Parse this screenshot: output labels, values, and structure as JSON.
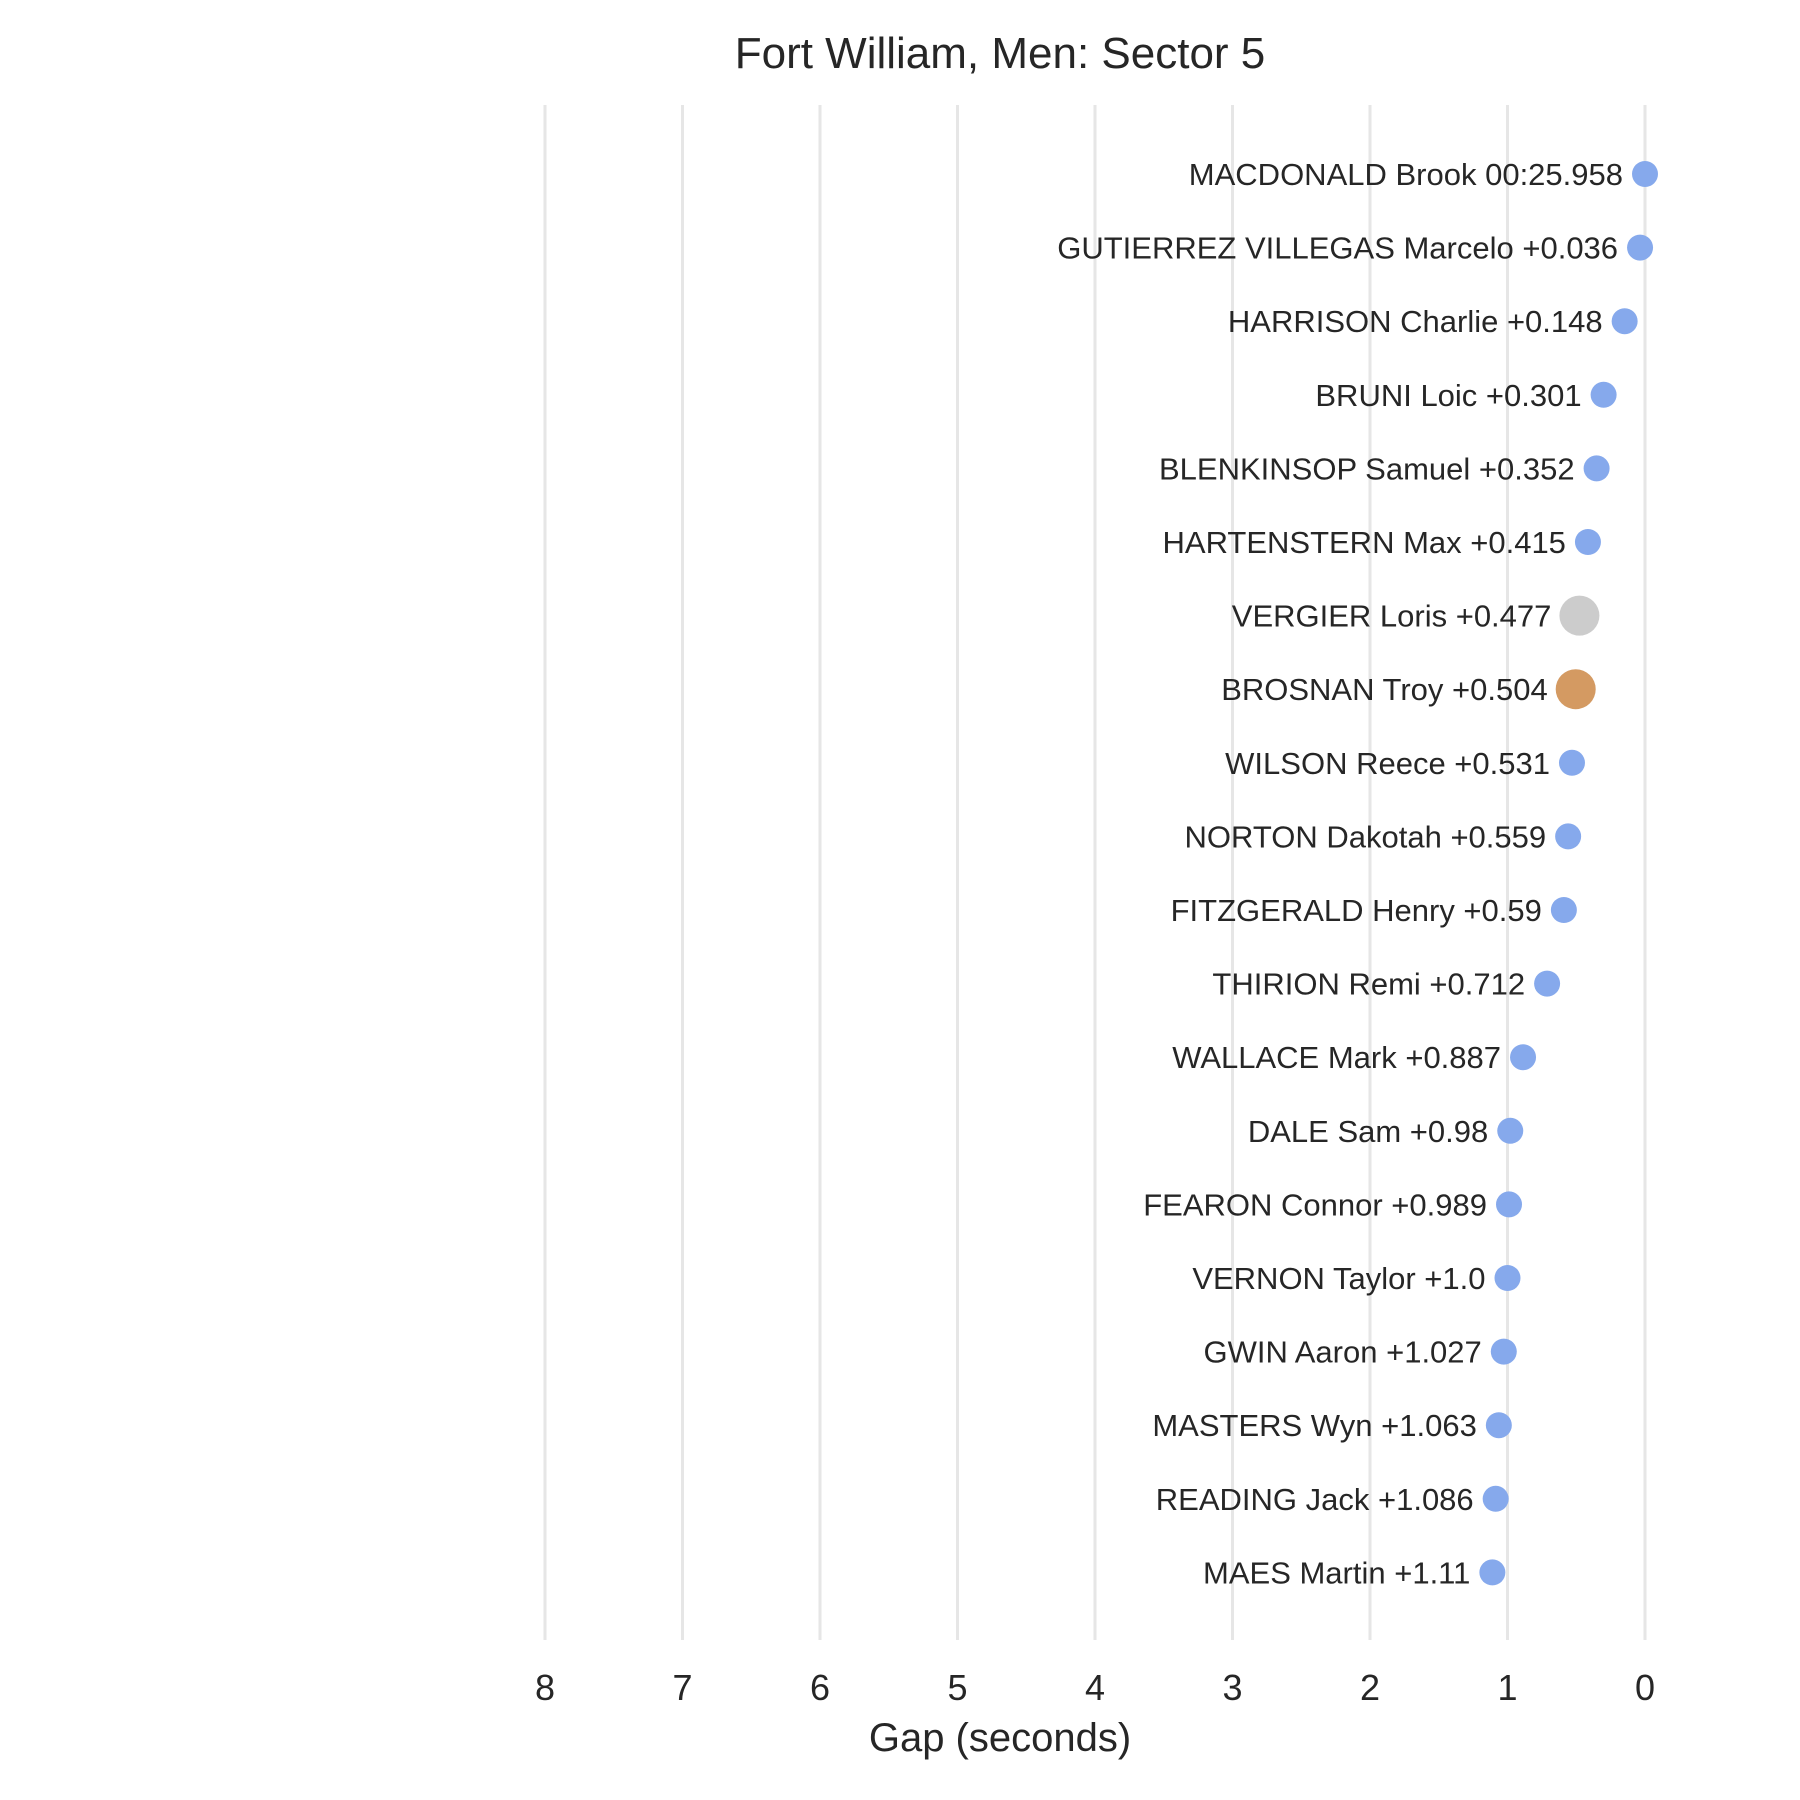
{
  "chart_data": {
    "type": "scatter",
    "title": "Fort William, Men: Sector 5",
    "xlabel": "Gap (seconds)",
    "ylabel": "",
    "xlim": [
      8,
      0
    ],
    "x_reversed": true,
    "xticks": [
      8,
      7,
      6,
      5,
      4,
      3,
      2,
      1,
      0
    ],
    "grid": "vertical",
    "legend": "none",
    "colors": {
      "default": "#86a9ec",
      "second": "#cccccc",
      "third": "#d49a62"
    },
    "points": [
      {
        "label": "MACDONALD Brook 00:25.958",
        "gap": 0,
        "highlight": "default"
      },
      {
        "label": "GUTIERREZ VILLEGAS Marcelo +0.036",
        "gap": 0.036,
        "highlight": "default"
      },
      {
        "label": "HARRISON Charlie +0.148",
        "gap": 0.148,
        "highlight": "default"
      },
      {
        "label": "BRUNI Loic +0.301",
        "gap": 0.301,
        "highlight": "default"
      },
      {
        "label": "BLENKINSOP Samuel +0.352",
        "gap": 0.352,
        "highlight": "default"
      },
      {
        "label": "HARTENSTERN Max +0.415",
        "gap": 0.415,
        "highlight": "default"
      },
      {
        "label": "VERGIER Loris +0.477",
        "gap": 0.477,
        "highlight": "second"
      },
      {
        "label": "BROSNAN Troy +0.504",
        "gap": 0.504,
        "highlight": "third"
      },
      {
        "label": "WILSON Reece +0.531",
        "gap": 0.531,
        "highlight": "default"
      },
      {
        "label": "NORTON Dakotah +0.559",
        "gap": 0.559,
        "highlight": "default"
      },
      {
        "label": "FITZGERALD Henry +0.59",
        "gap": 0.59,
        "highlight": "default"
      },
      {
        "label": "THIRION Remi +0.712",
        "gap": 0.712,
        "highlight": "default"
      },
      {
        "label": "WALLACE Mark +0.887",
        "gap": 0.887,
        "highlight": "default"
      },
      {
        "label": "DALE Sam +0.98",
        "gap": 0.98,
        "highlight": "default"
      },
      {
        "label": "FEARON Connor +0.989",
        "gap": 0.989,
        "highlight": "default"
      },
      {
        "label": "VERNON Taylor +1.0",
        "gap": 1.0,
        "highlight": "default"
      },
      {
        "label": "GWIN Aaron +1.027",
        "gap": 1.027,
        "highlight": "default"
      },
      {
        "label": "MASTERS Wyn +1.063",
        "gap": 1.063,
        "highlight": "default"
      },
      {
        "label": "READING Jack +1.086",
        "gap": 1.086,
        "highlight": "default"
      },
      {
        "label": "MAES Martin +1.11",
        "gap": 1.11,
        "highlight": "default"
      }
    ]
  }
}
